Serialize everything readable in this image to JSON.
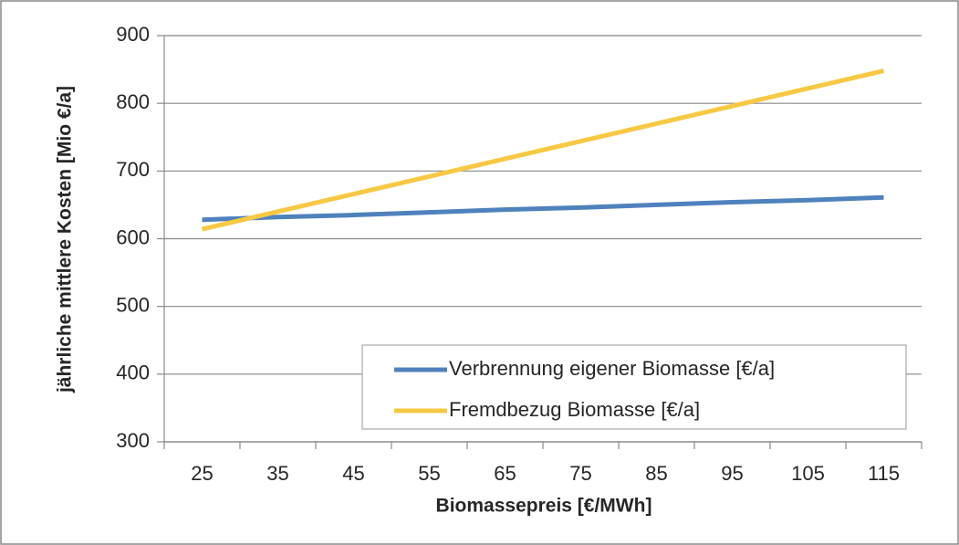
{
  "chart_data": {
    "type": "line",
    "x_label": "Biomassepreis [€/MWh]",
    "y_label": "jährliche mittlere Kosten [Mio €/a]",
    "categories": [
      "25",
      "35",
      "45",
      "55",
      "65",
      "75",
      "85",
      "95",
      "105",
      "115"
    ],
    "series": [
      {
        "name": "Verbrennung eigener Biomasse [€/a]",
        "color": "#4f81bd",
        "values": [
          628,
          632,
          635,
          639,
          643,
          646,
          650,
          654,
          657,
          661
        ]
      },
      {
        "name": "Fremdbezug Biomasse [€/a]",
        "color": "#f7c843",
        "values": [
          614,
          640,
          666,
          692,
          718,
          744,
          770,
          796,
          822,
          848
        ]
      }
    ],
    "ylim": [
      300,
      900
    ],
    "yticks": [
      300,
      400,
      500,
      600,
      700,
      800,
      900
    ],
    "grid": true
  }
}
